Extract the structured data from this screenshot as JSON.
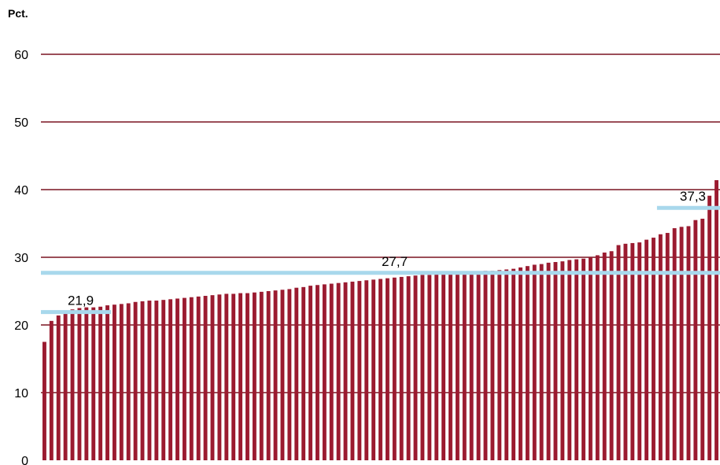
{
  "chart_data": {
    "type": "bar",
    "unit_label": "Pct.",
    "ylim": [
      0,
      60
    ],
    "yticks": [
      "0",
      "10",
      "20",
      "30",
      "40",
      "50",
      "60"
    ],
    "grid": true,
    "colors": {
      "bar": "#9b1b30",
      "grid": "#7a1320",
      "reference": "#a8d8ec"
    },
    "values": [
      17.5,
      20.6,
      21.4,
      21.9,
      22.3,
      22.5,
      22.6,
      22.6,
      22.7,
      22.9,
      23.0,
      23.1,
      23.2,
      23.4,
      23.5,
      23.6,
      23.6,
      23.7,
      23.8,
      23.9,
      24.0,
      24.1,
      24.2,
      24.3,
      24.4,
      24.5,
      24.6,
      24.6,
      24.7,
      24.7,
      24.8,
      24.9,
      25.0,
      25.1,
      25.2,
      25.3,
      25.5,
      25.6,
      25.8,
      25.9,
      26.0,
      26.1,
      26.2,
      26.3,
      26.4,
      26.5,
      26.6,
      26.7,
      26.8,
      26.9,
      27.0,
      27.1,
      27.2,
      27.3,
      27.4,
      27.4,
      27.5,
      27.6,
      27.6,
      27.7,
      27.8,
      27.8,
      27.9,
      28.0,
      28.0,
      28.1,
      28.2,
      28.3,
      28.5,
      28.7,
      28.9,
      29.0,
      29.2,
      29.3,
      29.4,
      29.6,
      29.7,
      29.8,
      30.0,
      30.3,
      30.7,
      30.9,
      31.8,
      32.0,
      32.1,
      32.2,
      32.6,
      32.9,
      33.4,
      33.6,
      34.3,
      34.5,
      34.6,
      35.5,
      35.7,
      39.1,
      41.4
    ],
    "reference_lines": [
      {
        "label": "21,9",
        "value": 21.9,
        "from": 0,
        "to": 9
      },
      {
        "label": "27,7",
        "value": 27.7,
        "from": 0,
        "to": 97
      },
      {
        "label": "37,3",
        "value": 37.3,
        "from": 88,
        "to": 97
      }
    ]
  }
}
